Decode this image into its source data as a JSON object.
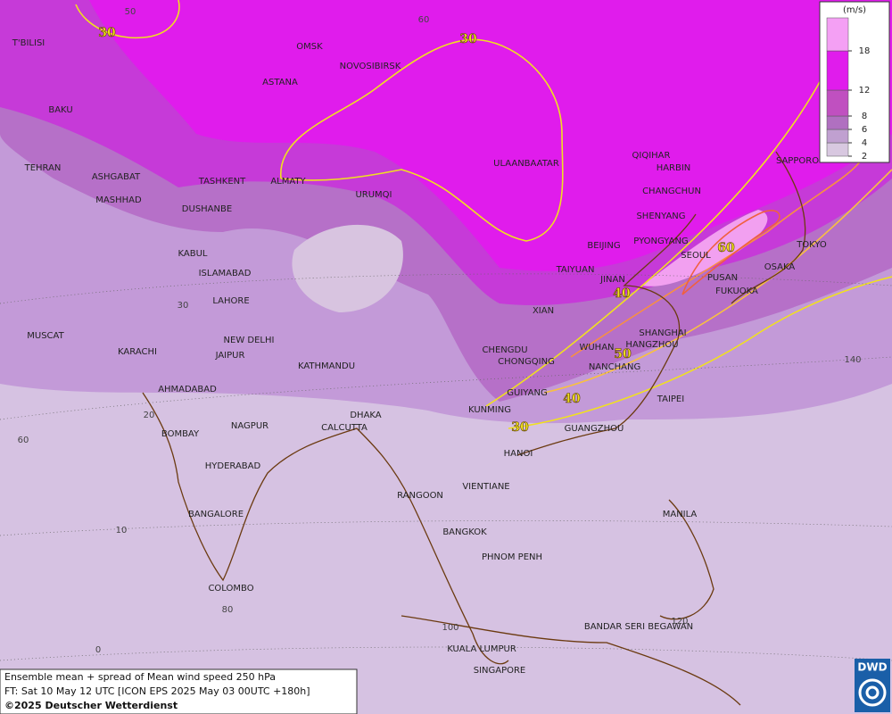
{
  "legend": {
    "unit": "(m/s)",
    "ticks": [
      2,
      4,
      6,
      8,
      12,
      18
    ]
  },
  "cities": [
    "OMSK",
    "NOVOSIBIRSK",
    "ASTANA",
    "T'BILISI",
    "BAKU",
    "TEHRAN",
    "ASHGABAT",
    "MASHHAD",
    "TASHKENT",
    "ALMATY",
    "URUMQI",
    "DUSHANBE",
    "ULAANBAATAR",
    "QIQIHAR",
    "HARBIN",
    "CHANGCHUN",
    "SHENYANG",
    "SAPPORO",
    "BEIJING",
    "PYONGYANG",
    "SEOUL",
    "TOKYO",
    "OSAKA",
    "PUSAN",
    "FUKUOKA",
    "TAIYUAN",
    "JINAN",
    "KABUL",
    "ISLAMABAD",
    "LAHORE",
    "XIAN",
    "NEW DELHI",
    "MUSCAT",
    "KARACHI",
    "JAIPUR",
    "KATHMANDU",
    "CHENGDU",
    "CHONGQING",
    "WUHAN",
    "SHANGHAI",
    "HANGZHOU",
    "NANCHANG",
    "AHMADABAD",
    "GUIYANG",
    "TAIPEI",
    "KUNMING",
    "DHAKA",
    "CALCUTTA",
    "NAGPUR",
    "BOMBAY",
    "GUANGZHOU",
    "HANOI",
    "HYDERABAD",
    "VIENTIANE",
    "RANGOON",
    "MANILA",
    "BANGALORE",
    "BANGKOK",
    "PHNOM PENH",
    "COLOMBO",
    "BANDAR SERI BEGAWAN",
    "KUALA LUMPUR",
    "SINGAPORE"
  ],
  "contour_labels": [
    30,
    30,
    40,
    50,
    60,
    40,
    30
  ],
  "grid_labels": [
    50,
    60,
    30,
    20,
    10,
    0,
    60,
    80,
    100,
    120,
    140
  ],
  "caption": {
    "line1": "Ensemble mean + spread of Mean wind speed 250 hPa",
    "line2": "FT: Sat 10 May 12 UTC [ICON EPS 2025 May 03 00UTC +180h]",
    "line3": "©2025 Deutscher Wetterdienst"
  },
  "logo": "DWD"
}
